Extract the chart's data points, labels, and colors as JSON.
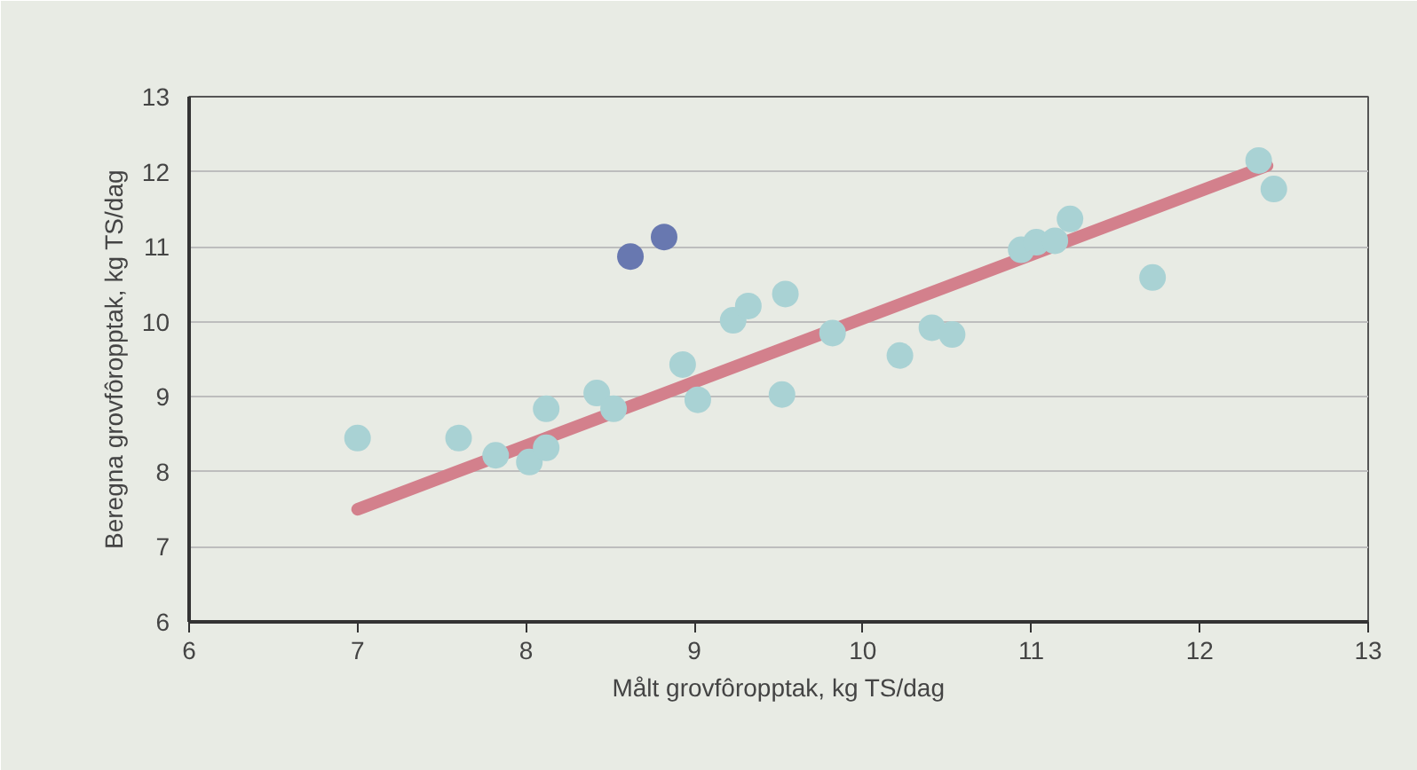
{
  "chart_data": {
    "type": "scatter",
    "xlabel": "Målt grovfôropptak, kg TS/dag",
    "ylabel": "Beregna grovfôropptak, kg TS/dag",
    "xlim": [
      6,
      13
    ],
    "ylim": [
      6,
      13
    ],
    "xticks": [
      6,
      7,
      8,
      9,
      10,
      11,
      12,
      13
    ],
    "yticks": [
      6,
      7,
      8,
      9,
      10,
      11,
      12,
      13
    ],
    "grid": "y",
    "marker": "circle",
    "series": [
      {
        "type": "line",
        "marker": "none",
        "color": "#d3808c",
        "x": [
          7.0,
          12.4
        ],
        "values": [
          7.5,
          12.08
        ]
      },
      {
        "color": "#a9d2d4",
        "x": [
          7.0,
          7.6,
          7.82,
          8.02,
          8.12,
          8.12,
          8.42,
          8.52,
          8.93,
          9.02,
          9.23,
          9.32,
          9.54,
          9.52,
          9.82,
          10.22,
          10.41,
          10.53,
          10.94,
          11.03,
          11.14,
          11.23,
          11.72,
          12.35,
          12.44
        ],
        "values": [
          8.45,
          8.45,
          8.22,
          8.13,
          8.32,
          8.84,
          9.05,
          8.84,
          9.43,
          8.96,
          10.02,
          10.21,
          10.37,
          9.03,
          9.85,
          9.55,
          9.92,
          9.83,
          10.96,
          11.06,
          11.08,
          11.37,
          10.59,
          12.15,
          11.77
        ]
      },
      {
        "color": "#6878b0",
        "x": [
          8.62,
          8.82
        ],
        "values": [
          10.87,
          11.13
        ]
      }
    ]
  }
}
